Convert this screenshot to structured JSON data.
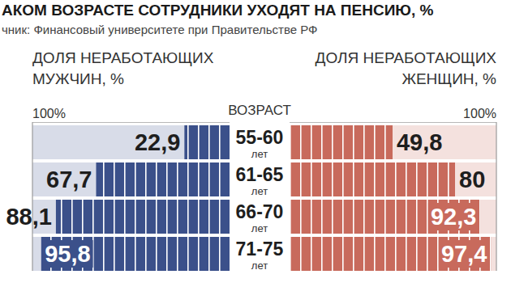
{
  "chart_data": {
    "type": "bar",
    "orientation": "horizontal",
    "title": "АКОМ ВОЗРАСТЕ СОТРУДНИКИ УХОДЯТ НА ПЕНСИЮ, %",
    "subtitle": "чник: Финансовый университете при Правительстве РФ",
    "ylabel": "ВОЗРАСТ",
    "annotations": [
      "лет"
    ],
    "categories": [
      "55-60",
      "61-65",
      "66-70",
      "71-75"
    ],
    "series": [
      {
        "name": "ДОЛЯ НЕРАБОТАЮЩИХ МУЖЧИН, %",
        "color": "#3b508a",
        "values": [
          22.9,
          67.7,
          88.1,
          95.8
        ],
        "value_labels": [
          "22,9",
          "67,7",
          "88,1",
          "95,8"
        ]
      },
      {
        "name": "ДОЛЯ НЕРАБОТАЮЩИХ ЖЕНЩИН, %",
        "color": "#c86a5c",
        "values": [
          49.8,
          80,
          92.3,
          97.4
        ],
        "value_labels": [
          "49,8",
          "80",
          "92,3",
          "97,4"
        ]
      }
    ],
    "xlim": [
      0,
      100
    ],
    "xticks": [
      {
        "value": 100,
        "label": "100%"
      }
    ],
    "data_labels": true,
    "grid": false
  }
}
